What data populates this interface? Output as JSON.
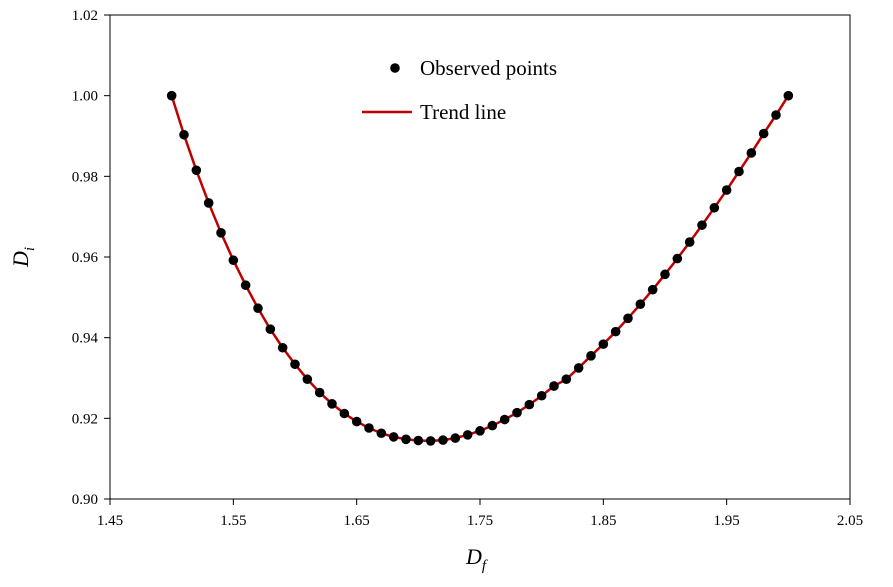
{
  "chart_data": {
    "type": "scatter",
    "xlabel": {
      "main": "D",
      "sub": "f"
    },
    "ylabel": {
      "main": "D",
      "sub": "i"
    },
    "xlim": [
      1.45,
      2.05
    ],
    "ylim": [
      0.9,
      1.02
    ],
    "xticks": [
      "1.45",
      "1.55",
      "1.65",
      "1.75",
      "1.85",
      "1.95",
      "2.05"
    ],
    "yticks": [
      "0.90",
      "0.92",
      "0.94",
      "0.96",
      "0.98",
      "1.00",
      "1.02"
    ],
    "grid": false,
    "legend_position": "top-center",
    "series": [
      {
        "name": "Observed points",
        "kind": "scatter",
        "color": "#000000",
        "x": [
          1.5,
          1.51,
          1.52,
          1.53,
          1.54,
          1.55,
          1.56,
          1.57,
          1.58,
          1.59,
          1.6,
          1.61,
          1.62,
          1.63,
          1.64,
          1.65,
          1.66,
          1.67,
          1.68,
          1.69,
          1.7,
          1.71,
          1.72,
          1.73,
          1.74,
          1.75,
          1.76,
          1.77,
          1.78,
          1.79,
          1.8,
          1.81,
          1.82,
          1.83,
          1.84,
          1.85,
          1.86,
          1.87,
          1.88,
          1.89,
          1.9,
          1.91,
          1.92,
          1.93,
          1.94,
          1.95,
          1.96,
          1.97,
          1.98,
          1.99,
          2.0
        ],
        "y": [
          1.0,
          0.9903,
          0.9815,
          0.9734,
          0.966,
          0.9592,
          0.953,
          0.9473,
          0.9421,
          0.9375,
          0.9334,
          0.9297,
          0.9264,
          0.9236,
          0.9212,
          0.9192,
          0.9176,
          0.9163,
          0.9154,
          0.9148,
          0.9145,
          0.9144,
          0.9146,
          0.9151,
          0.9159,
          0.9169,
          0.9182,
          0.9197,
          0.9214,
          0.9234,
          0.9256,
          0.928,
          0.9297,
          0.9325,
          0.9355,
          0.9384,
          0.9415,
          0.9448,
          0.9483,
          0.9519,
          0.9557,
          0.9596,
          0.9637,
          0.9679,
          0.9722,
          0.9766,
          0.9812,
          0.9858,
          0.9906,
          0.9952,
          1.0
        ]
      },
      {
        "name": "Trend line",
        "kind": "line",
        "color": "#c00000",
        "x": [
          1.5,
          1.51,
          1.52,
          1.53,
          1.54,
          1.55,
          1.56,
          1.57,
          1.58,
          1.59,
          1.6,
          1.61,
          1.62,
          1.63,
          1.64,
          1.65,
          1.66,
          1.67,
          1.68,
          1.69,
          1.7,
          1.71,
          1.72,
          1.73,
          1.74,
          1.75,
          1.76,
          1.77,
          1.78,
          1.79,
          1.8,
          1.81,
          1.82,
          1.83,
          1.84,
          1.85,
          1.86,
          1.87,
          1.88,
          1.89,
          1.9,
          1.91,
          1.92,
          1.93,
          1.94,
          1.95,
          1.96,
          1.97,
          1.98,
          1.99,
          2.0
        ],
        "y": [
          1.0,
          0.9903,
          0.9815,
          0.9734,
          0.966,
          0.9592,
          0.953,
          0.9473,
          0.9421,
          0.9375,
          0.9334,
          0.9297,
          0.9264,
          0.9236,
          0.9212,
          0.9192,
          0.9176,
          0.9163,
          0.9154,
          0.9148,
          0.9145,
          0.9144,
          0.9146,
          0.9151,
          0.9159,
          0.9169,
          0.9182,
          0.9197,
          0.9214,
          0.9234,
          0.9256,
          0.928,
          0.9297,
          0.9325,
          0.9355,
          0.9384,
          0.9415,
          0.9448,
          0.9483,
          0.9519,
          0.9557,
          0.9596,
          0.9637,
          0.9679,
          0.9722,
          0.9766,
          0.9812,
          0.9858,
          0.9906,
          0.9952,
          1.0
        ]
      }
    ]
  }
}
